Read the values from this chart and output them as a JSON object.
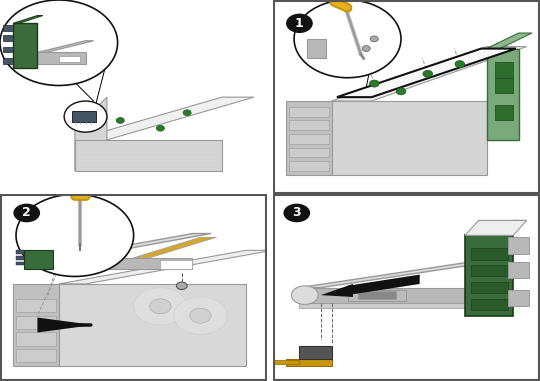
{
  "bg_color": "#ffffff",
  "fig_width": 5.4,
  "fig_height": 3.81,
  "gray_light": "#e8e8e8",
  "gray_mid": "#cccccc",
  "gray_dark": "#999999",
  "gray_cover": "#f0f0f0",
  "green_pcb": "#3a6b3a",
  "green_bright": "#4a8c4a",
  "gold": "#c8960a",
  "gold_light": "#e8b020",
  "black": "#111111",
  "white": "#ffffff",
  "step_bg": "#111111",
  "step_fg": "#ffffff",
  "border": "#333333",
  "silver": "#b8b8b8",
  "dark_silver": "#888888",
  "panel_border": "#555555",
  "chassis_face": "#d5d5d5",
  "chassis_top": "#eeeeee",
  "chassis_side": "#c0c0c0",
  "bracket_color": "#dcdcdc",
  "connector_dark": "#445566",
  "screw_green": "#2a7a2a"
}
